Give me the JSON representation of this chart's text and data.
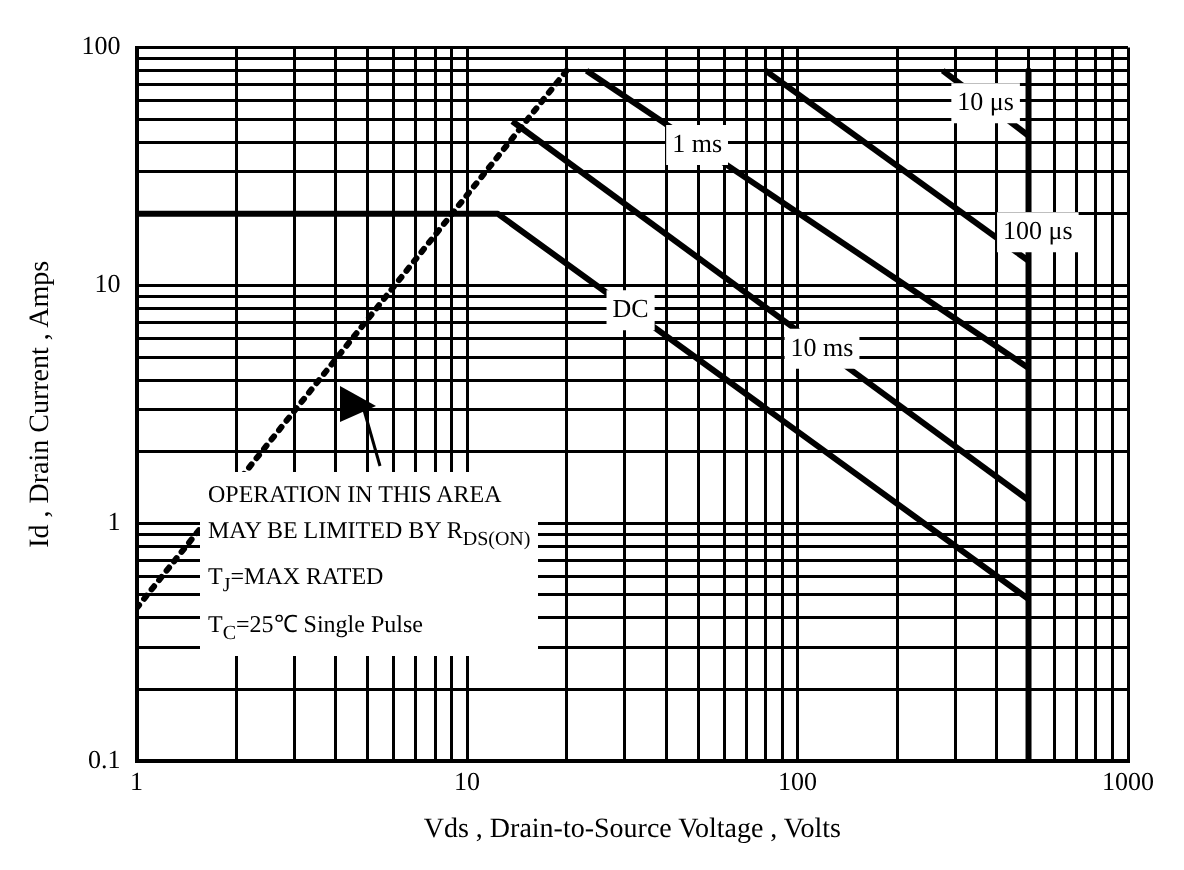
{
  "chart_data": {
    "type": "line",
    "xlabel": "Vds , Drain-to-Source Voltage , Volts",
    "ylabel": "Id , Drain Current , Amps",
    "log": "xy",
    "grid": true,
    "legend": false,
    "marker": "none",
    "xlim": [
      1,
      1000
    ],
    "ylim": [
      0.1,
      100
    ],
    "xticks": [
      1,
      {
        "value": 2,
        "label": null
      },
      {
        "value": 3,
        "label": null
      },
      {
        "value": 4,
        "label": null
      },
      {
        "value": 5,
        "label": null
      },
      {
        "value": 6,
        "label": null
      },
      {
        "value": 7,
        "label": null
      },
      {
        "value": 8,
        "label": null
      },
      {
        "value": 9,
        "label": null
      },
      10,
      {
        "value": 20,
        "label": null
      },
      {
        "value": 30,
        "label": null
      },
      {
        "value": 40,
        "label": null
      },
      {
        "value": 50,
        "label": null
      },
      {
        "value": 60,
        "label": null
      },
      {
        "value": 70,
        "label": null
      },
      {
        "value": 80,
        "label": null
      },
      {
        "value": 90,
        "label": null
      },
      100,
      {
        "value": 200,
        "label": null
      },
      {
        "value": 300,
        "label": null
      },
      {
        "value": 400,
        "label": null
      },
      {
        "value": 500,
        "label": null
      },
      {
        "value": 600,
        "label": null
      },
      {
        "value": 700,
        "label": null
      },
      {
        "value": 800,
        "label": null
      },
      {
        "value": 900,
        "label": null
      },
      1000
    ],
    "yticks": [
      0.1,
      {
        "value": 0.2,
        "label": null
      },
      {
        "value": 0.3,
        "label": null
      },
      {
        "value": 0.4,
        "label": null
      },
      {
        "value": 0.5,
        "label": null
      },
      {
        "value": 0.6,
        "label": null
      },
      {
        "value": 0.7,
        "label": null
      },
      {
        "value": 0.8,
        "label": null
      },
      {
        "value": 0.9,
        "label": null
      },
      1,
      {
        "value": 2,
        "label": null
      },
      {
        "value": 3,
        "label": null
      },
      {
        "value": 4,
        "label": null
      },
      {
        "value": 5,
        "label": null
      },
      {
        "value": 6,
        "label": null
      },
      {
        "value": 7,
        "label": null
      },
      {
        "value": 8,
        "label": null
      },
      {
        "value": 9,
        "label": null
      },
      10,
      {
        "value": 20,
        "label": null
      },
      {
        "value": 30,
        "label": null
      },
      {
        "value": 40,
        "label": null
      },
      {
        "value": 50,
        "label": null
      },
      {
        "value": 60,
        "label": null
      },
      {
        "value": 70,
        "label": null
      },
      {
        "value": 80,
        "label": null
      },
      {
        "value": 90,
        "label": null
      },
      100
    ],
    "series": [
      {
        "color": "#000000",
        "line_style": "dotted",
        "x": [
          1,
          20
        ],
        "values": [
          0.44,
          80
        ]
      },
      {
        "name": "DC",
        "color": "#000000",
        "x": [
          1,
          12.4,
          500
        ],
        "values": [
          20,
          20,
          0.48
        ]
      },
      {
        "name": "10 ms",
        "color": "#000000",
        "x": [
          13.7,
          500
        ],
        "values": [
          49,
          1.25
        ]
      },
      {
        "name": "1 ms",
        "color": "#000000",
        "x": [
          23,
          500
        ],
        "values": [
          80,
          4.5
        ]
      },
      {
        "name": "100 μs",
        "color": "#000000",
        "x": [
          80,
          500
        ],
        "values": [
          80,
          12.7
        ]
      },
      {
        "name": "10 μs",
        "color": "#000000",
        "x": [
          275,
          500
        ],
        "values": [
          80,
          42.6
        ]
      },
      {
        "color": "#000000",
        "x": [
          500,
          500
        ],
        "values": [
          80,
          0.1
        ]
      }
    ],
    "annotations": [
      "OPERATION IN THIS AREA",
      "MAY BE LIMITED BY R$_{DS(ON)}$",
      "T$_{J}$=MAX RATED",
      "T$_{C}$=25℃  Single Pulse"
    ]
  }
}
